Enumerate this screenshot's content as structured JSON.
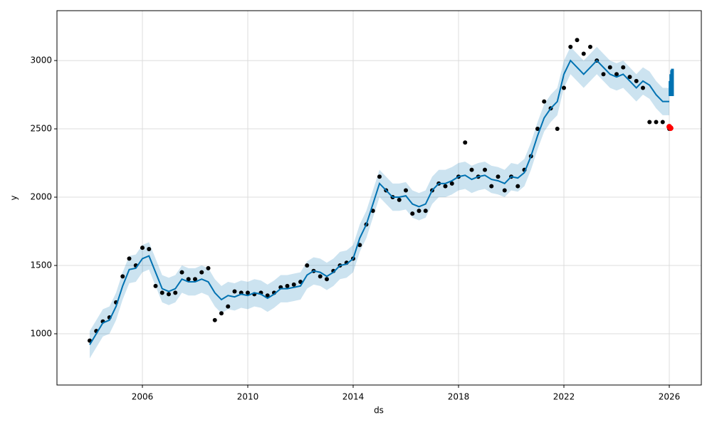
{
  "chart_data": {
    "type": "forecast",
    "x_label": "ds",
    "y_label": "y",
    "xlim": [
      2002.757,
      2027.216
    ],
    "ylim": [
      625,
      3365
    ],
    "xticks": [
      2006,
      2010,
      2014,
      2018,
      2022,
      2026
    ],
    "yticks": [
      1000,
      1500,
      2000,
      2500,
      3000
    ],
    "grid": true,
    "x": [
      2004.0,
      2004.25,
      2004.5,
      2004.75,
      2005.0,
      2005.25,
      2005.5,
      2005.75,
      2006.0,
      2006.25,
      2006.5,
      2006.75,
      2007.0,
      2007.25,
      2007.5,
      2007.75,
      2008.0,
      2008.25,
      2008.5,
      2008.75,
      2009.0,
      2009.25,
      2009.5,
      2009.75,
      2010.0,
      2010.25,
      2010.5,
      2010.75,
      2011.0,
      2011.25,
      2011.5,
      2011.75,
      2012.0,
      2012.25,
      2012.5,
      2012.75,
      2013.0,
      2013.25,
      2013.5,
      2013.75,
      2014.0,
      2014.25,
      2014.5,
      2014.75,
      2015.0,
      2015.25,
      2015.5,
      2015.75,
      2016.0,
      2016.25,
      2016.5,
      2016.75,
      2017.0,
      2017.25,
      2017.5,
      2017.75,
      2018.0,
      2018.25,
      2018.5,
      2018.75,
      2019.0,
      2019.25,
      2019.5,
      2019.75,
      2020.0,
      2020.25,
      2020.5,
      2020.75,
      2021.0,
      2021.25,
      2021.5,
      2021.75,
      2022.0,
      2022.25,
      2022.5,
      2022.75,
      2023.0,
      2023.25,
      2023.5,
      2023.75,
      2024.0,
      2024.25,
      2024.5,
      2024.75,
      2025.0,
      2025.25,
      2025.5,
      2025.75,
      2026.0
    ],
    "series": [
      {
        "style": "band",
        "color": "#0072B2",
        "upper": [
          1020,
          1100,
          1180,
          1200,
          1300,
          1450,
          1570,
          1580,
          1650,
          1670,
          1550,
          1430,
          1410,
          1430,
          1500,
          1480,
          1480,
          1500,
          1480,
          1400,
          1350,
          1380,
          1370,
          1390,
          1380,
          1400,
          1390,
          1360,
          1390,
          1430,
          1430,
          1440,
          1450,
          1530,
          1560,
          1550,
          1520,
          1550,
          1600,
          1610,
          1650,
          1800,
          1900,
          2050,
          2200,
          2150,
          2100,
          2100,
          2110,
          2050,
          2030,
          2050,
          2150,
          2200,
          2200,
          2220,
          2250,
          2260,
          2230,
          2250,
          2260,
          2230,
          2220,
          2200,
          2250,
          2240,
          2280,
          2400,
          2550,
          2680,
          2750,
          2800,
          3000,
          3100,
          3050,
          3000,
          3050,
          3100,
          3050,
          3000,
          2980,
          3000,
          2950,
          2900,
          2950,
          2920,
          2850,
          2800,
          2800
        ],
        "lower": [
          820,
          900,
          980,
          1000,
          1100,
          1250,
          1370,
          1380,
          1450,
          1470,
          1350,
          1230,
          1210,
          1230,
          1300,
          1280,
          1280,
          1300,
          1280,
          1200,
          1150,
          1180,
          1170,
          1190,
          1180,
          1200,
          1190,
          1160,
          1190,
          1230,
          1230,
          1240,
          1250,
          1330,
          1360,
          1350,
          1320,
          1350,
          1400,
          1410,
          1450,
          1600,
          1700,
          1850,
          2000,
          1950,
          1900,
          1900,
          1910,
          1850,
          1830,
          1850,
          1950,
          2000,
          2000,
          2020,
          2050,
          2060,
          2030,
          2050,
          2060,
          2030,
          2020,
          2000,
          2050,
          2040,
          2080,
          2200,
          2350,
          2480,
          2550,
          2600,
          2800,
          2900,
          2850,
          2800,
          2850,
          2900,
          2850,
          2800,
          2780,
          2800,
          2750,
          2700,
          2750,
          2720,
          2650,
          2600,
          2600
        ]
      },
      {
        "style": "points",
        "color": "#000000",
        "values": [
          950,
          1020,
          1090,
          1120,
          1230,
          1420,
          1550,
          1500,
          1630,
          1620,
          1350,
          1300,
          1290,
          1300,
          1450,
          1400,
          1400,
          1450,
          1480,
          1100,
          1150,
          1200,
          1310,
          1300,
          1300,
          1290,
          1300,
          1280,
          1300,
          1340,
          1350,
          1360,
          1380,
          1500,
          1460,
          1420,
          1400,
          1460,
          1500,
          1520,
          1550,
          1650,
          1800,
          1900,
          2150,
          2050,
          2000,
          1980,
          2050,
          1880,
          1900,
          1900,
          2050,
          2100,
          2080,
          2100,
          2150,
          2400,
          2200,
          2150,
          2200,
          2080,
          2150,
          2050,
          2150,
          2080,
          2200,
          2300,
          2500,
          2700,
          2650,
          2500,
          2800,
          3100,
          3150,
          3050,
          3100,
          3000,
          2900,
          2950,
          2900,
          2950,
          2880,
          2850,
          2800,
          2550,
          2550,
          2550,
          2500
        ]
      },
      {
        "style": "line",
        "color": "#0072B2",
        "values": [
          920,
          1000,
          1080,
          1100,
          1200,
          1350,
          1470,
          1480,
          1550,
          1570,
          1450,
          1330,
          1310,
          1330,
          1400,
          1380,
          1380,
          1400,
          1380,
          1300,
          1250,
          1280,
          1270,
          1290,
          1280,
          1300,
          1290,
          1260,
          1290,
          1330,
          1330,
          1340,
          1350,
          1430,
          1460,
          1450,
          1420,
          1450,
          1500,
          1510,
          1550,
          1700,
          1800,
          1950,
          2100,
          2050,
          2000,
          2000,
          2010,
          1950,
          1930,
          1950,
          2050,
          2100,
          2100,
          2120,
          2150,
          2160,
          2130,
          2150,
          2160,
          2130,
          2120,
          2100,
          2150,
          2140,
          2180,
          2300,
          2450,
          2580,
          2650,
          2700,
          2900,
          3000,
          2950,
          2900,
          2950,
          3000,
          2950,
          2900,
          2880,
          2900,
          2850,
          2800,
          2850,
          2820,
          2750,
          2700,
          2700
        ]
      },
      {
        "style": "forecast",
        "color": "#0072B2",
        "x": [
          2026.0,
          2026.03,
          2026.06,
          2026.09,
          2026.12
        ],
        "values": [
          2740,
          2850,
          2900,
          2930,
          2940
        ]
      },
      {
        "style": "actual",
        "color": "#ff0000",
        "x": [
          2026.0,
          2026.05
        ],
        "values": [
          2515,
          2505
        ]
      }
    ]
  }
}
